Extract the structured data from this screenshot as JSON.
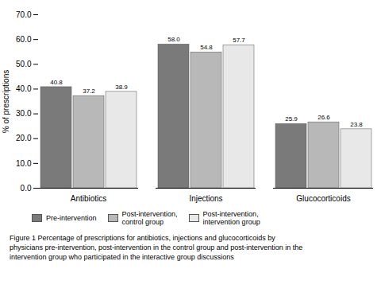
{
  "chart_data": {
    "type": "bar",
    "categories": [
      "Antibiotics",
      "Injections",
      "Glucocorticoids"
    ],
    "series": [
      {
        "name": "Pre-intervention",
        "color": "#7a7a7a",
        "values": [
          40.8,
          58.0,
          25.9
        ],
        "value_labels": [
          "40.8",
          "58.0",
          "25.9"
        ]
      },
      {
        "name": "Post-intervention,\ncontrol group",
        "color": "#b8b8b8",
        "values": [
          37.2,
          54.8,
          26.6
        ],
        "value_labels": [
          "37.2",
          "54.8",
          "26.6"
        ]
      },
      {
        "name": "Post-intervention,\nintervention group",
        "color": "#e8e8e8",
        "values": [
          38.9,
          57.7,
          23.8
        ],
        "value_labels": [
          "38.9",
          "57.7",
          "23.8"
        ]
      }
    ],
    "ylabel": "% of prescriptions",
    "ylim": [
      0,
      70.0
    ],
    "yticks": [
      {
        "value": 0,
        "label": "0.0"
      },
      {
        "value": 10,
        "label": "10.0"
      },
      {
        "value": 20,
        "label": "20.0"
      },
      {
        "value": 30,
        "label": "30.0"
      },
      {
        "value": 40,
        "label": "40.0"
      },
      {
        "value": 50,
        "label": "50.0"
      },
      {
        "value": 60,
        "label": "60.0"
      },
      {
        "value": 70,
        "label": "70.0"
      }
    ],
    "data_labels": true,
    "legend": "bottom",
    "caption": "Figure 1 Percentage of prescriptions for antibiotics, injections and glucocorticoids by\nphysicians pre-intervention, post-intervention in the control group and post-intervention in the\nintervention group who participated in the interactive group discussions"
  }
}
